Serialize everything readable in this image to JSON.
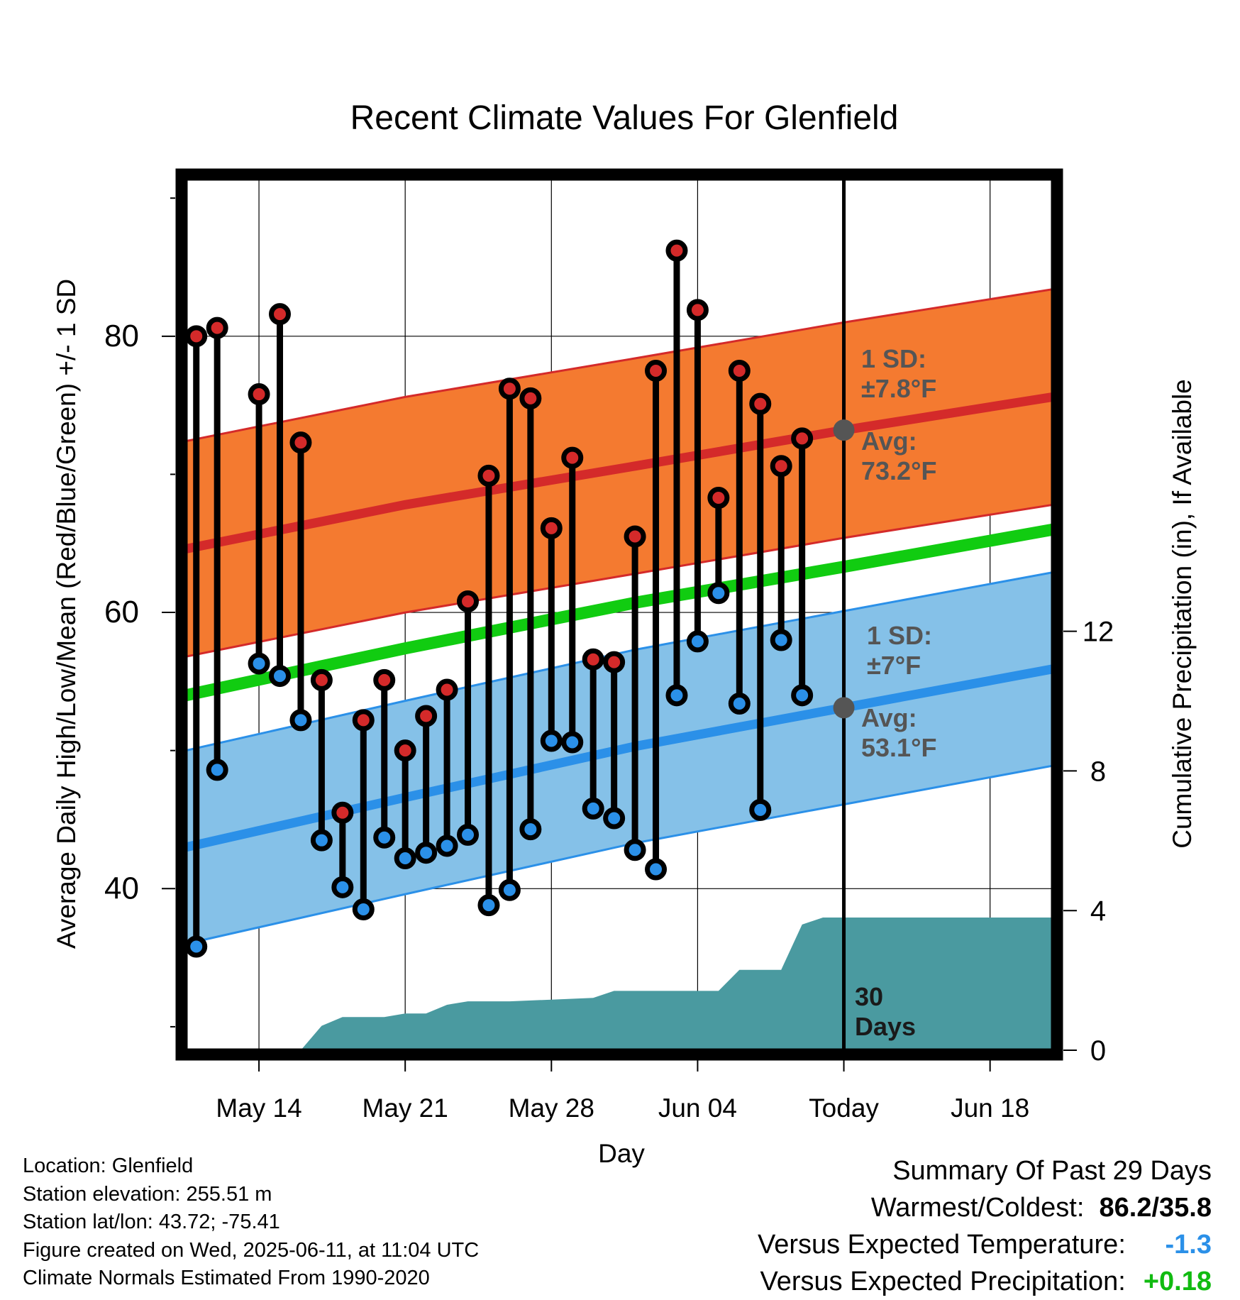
{
  "chart_data": {
    "type": "line",
    "title": "Recent Climate Values For Glenfield",
    "xlabel": "Day",
    "ylabel_left": "Average Daily High/Low/Mean (Red/Blue/Green) +/- 1 SD",
    "ylabel_right": "Cumulative Precipitation (in), If Available",
    "x_ticks": [
      "May 14",
      "May 21",
      "May 28",
      "Jun 04",
      "Today",
      "Jun 18"
    ],
    "x_tick_dates": [
      "2025-05-14",
      "2025-05-21",
      "2025-05-28",
      "2025-06-04",
      "2025-06-11",
      "2025-06-18"
    ],
    "x_range": [
      "2025-05-10 12:00",
      "2025-06-21 00:00"
    ],
    "y_left_ticks": [
      40,
      60,
      80
    ],
    "y_left_range": [
      28.3,
      91.5
    ],
    "y_right_ticks": [
      0,
      4,
      8,
      12
    ],
    "y_right_range": [
      0,
      25
    ],
    "grid": true,
    "days": [
      "2025-05-11",
      "2025-05-12",
      "2025-05-13",
      "2025-05-14",
      "2025-05-15",
      "2025-05-16",
      "2025-05-17",
      "2025-05-18",
      "2025-05-19",
      "2025-05-20",
      "2025-05-21",
      "2025-05-22",
      "2025-05-23",
      "2025-05-24",
      "2025-05-25",
      "2025-05-26",
      "2025-05-27",
      "2025-05-28",
      "2025-05-29",
      "2025-05-30",
      "2025-05-31",
      "2025-06-01",
      "2025-06-02",
      "2025-06-03",
      "2025-06-04",
      "2025-06-05",
      "2025-06-06",
      "2025-06-07",
      "2025-06-08",
      "2025-06-09",
      "2025-06-10",
      "2025-06-11"
    ],
    "series": [
      {
        "name": "Daily High",
        "color": "#d42a2a",
        "values": [
          80.0,
          80.6,
          null,
          75.8,
          81.6,
          72.3,
          55.1,
          45.5,
          52.2,
          55.1,
          50.0,
          52.5,
          54.4,
          60.8,
          69.9,
          76.2,
          75.5,
          66.1,
          71.2,
          56.6,
          56.4,
          65.5,
          77.5,
          86.2,
          81.9,
          68.3,
          77.5,
          75.1,
          70.6,
          72.6,
          null,
          null
        ]
      },
      {
        "name": "Daily Low",
        "color": "#2b90e8",
        "values": [
          35.8,
          48.6,
          null,
          56.3,
          55.4,
          52.2,
          43.5,
          40.1,
          38.5,
          43.7,
          42.2,
          42.6,
          43.1,
          43.9,
          38.8,
          39.9,
          44.3,
          50.7,
          50.6,
          45.8,
          45.1,
          42.8,
          41.4,
          54.0,
          57.9,
          61.4,
          53.4,
          45.7,
          58.0,
          54.0,
          null,
          null
        ]
      }
    ],
    "normals": {
      "dates": [
        "2025-05-10 12:00",
        "2025-05-21",
        "2025-06-01",
        "2025-06-11",
        "2025-06-21"
      ],
      "avg_high": [
        64.6,
        67.8,
        70.6,
        73.2,
        75.6
      ],
      "high_sd": 7.8,
      "avg_low": [
        43.0,
        46.6,
        50.3,
        53.1,
        55.9
      ],
      "low_sd": 7,
      "mean": [
        54.0,
        57.4,
        60.7,
        63.3,
        66.0
      ]
    },
    "precip": {
      "color": "#4a9aa0",
      "dates": [
        "2025-05-10 12:00",
        "2025-05-15",
        "2025-05-16",
        "2025-05-17",
        "2025-05-18",
        "2025-05-19",
        "2025-05-20",
        "2025-05-21",
        "2025-05-22",
        "2025-05-23",
        "2025-05-24",
        "2025-05-26",
        "2025-05-28",
        "2025-05-30",
        "2025-05-31",
        "2025-06-04",
        "2025-06-05",
        "2025-06-06",
        "2025-06-07",
        "2025-06-08",
        "2025-06-09",
        "2025-06-10",
        "2025-06-11",
        "2025-06-21 00:00"
      ],
      "values": [
        0,
        0,
        0,
        0.7,
        0.95,
        0.95,
        0.95,
        1.05,
        1.05,
        1.3,
        1.4,
        1.4,
        1.45,
        1.5,
        1.7,
        1.7,
        1.7,
        2.3,
        2.3,
        2.3,
        3.6,
        3.8,
        3.8,
        3.8
      ]
    },
    "annotations": {
      "high_sd_label": "1 SD:",
      "high_sd_value": "±7.8°F",
      "high_avg_label": "Avg:",
      "high_avg_value": "73.2°F",
      "low_sd_label": "1 SD:",
      "low_sd_value": "±7°F",
      "low_avg_label": "Avg:",
      "low_avg_value": "53.1°F",
      "days_number": "30",
      "days_word": "Days"
    },
    "colors": {
      "high_band": "#f47a30",
      "high_band_edge": "#d42a2a",
      "low_band": "#85c1e8",
      "low_band_edge": "#2b90e8",
      "mean_line": "#11cc11",
      "today_marker": "#555555"
    }
  },
  "info": {
    "location": "Location: Glenfield",
    "elevation": "Station elevation: 255.51 m",
    "latlon": "Station lat/lon: 43.72; -75.41",
    "created": "Figure created on Wed, 2025-06-11, at 11:04 UTC",
    "normals_note": "Climate Normals Estimated From 1990-2020"
  },
  "summary": {
    "heading": "Summary Of Past 29 Days",
    "warmest_label": "Warmest/Coldest:",
    "warmest_value": "86.2/35.8",
    "temp_label": "Versus Expected Temperature:",
    "temp_value": "-1.3",
    "temp_color": "#2b90e8",
    "precip_label": "Versus Expected Precipitation:",
    "precip_value": "+0.18",
    "precip_color": "#11bb11"
  }
}
